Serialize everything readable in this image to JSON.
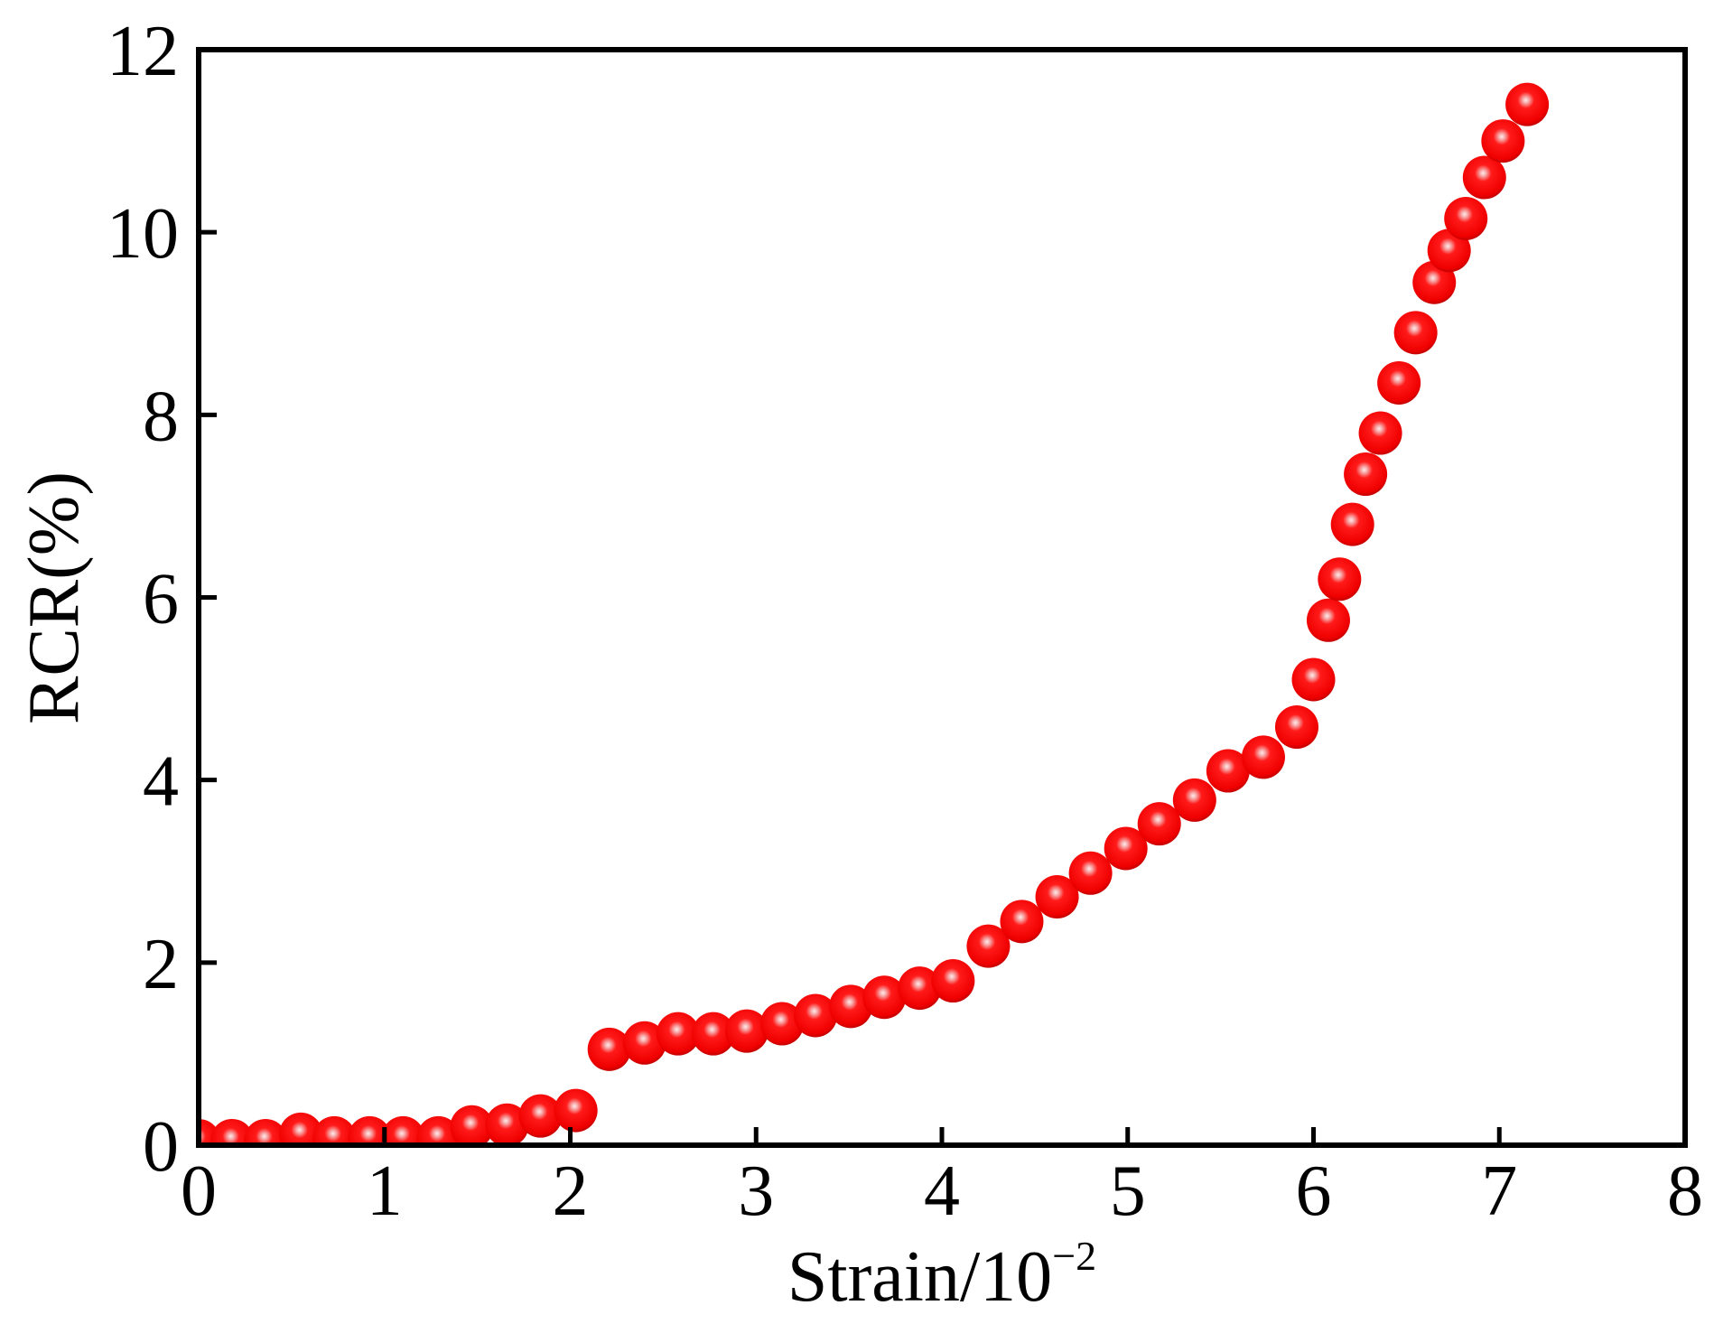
{
  "chart_data": {
    "type": "scatter",
    "xlabel": "Strain/10",
    "xlabel_superscript": "−2",
    "ylabel": "RCR(%)",
    "xlim": [
      0,
      8
    ],
    "ylim": [
      0,
      12
    ],
    "xticks": [
      "0",
      "1",
      "2",
      "3",
      "4",
      "5",
      "6",
      "7",
      "8"
    ],
    "yticks": [
      "0",
      "2",
      "4",
      "6",
      "8",
      "10",
      "12"
    ],
    "grid": false,
    "marker_color": "#ff0000",
    "series": [
      {
        "x": [
          0.0,
          0.18,
          0.36,
          0.55,
          0.73,
          0.92,
          1.1,
          1.29,
          1.47,
          1.66,
          1.84,
          2.03,
          2.21,
          2.4,
          2.58,
          2.77,
          2.95,
          3.14,
          3.32,
          3.51,
          3.69,
          3.88,
          4.06,
          4.25,
          4.43,
          4.62,
          4.8,
          4.99,
          5.17,
          5.36,
          5.54,
          5.73,
          5.91,
          6.0,
          6.08,
          6.14,
          6.21,
          6.28,
          6.36,
          6.46,
          6.55,
          6.65,
          6.73,
          6.82,
          6.92,
          7.02,
          7.15
        ],
        "y": [
          0.05,
          0.05,
          0.05,
          0.12,
          0.08,
          0.08,
          0.08,
          0.08,
          0.2,
          0.22,
          0.32,
          0.38,
          1.05,
          1.12,
          1.22,
          1.22,
          1.25,
          1.33,
          1.42,
          1.52,
          1.62,
          1.72,
          1.8,
          2.18,
          2.45,
          2.72,
          2.98,
          3.25,
          3.52,
          3.78,
          4.1,
          4.25,
          4.58,
          5.1,
          5.75,
          6.2,
          6.8,
          7.35,
          7.8,
          8.35,
          8.9,
          9.45,
          9.8,
          10.15,
          10.6,
          11.0,
          11.4
        ]
      }
    ]
  }
}
